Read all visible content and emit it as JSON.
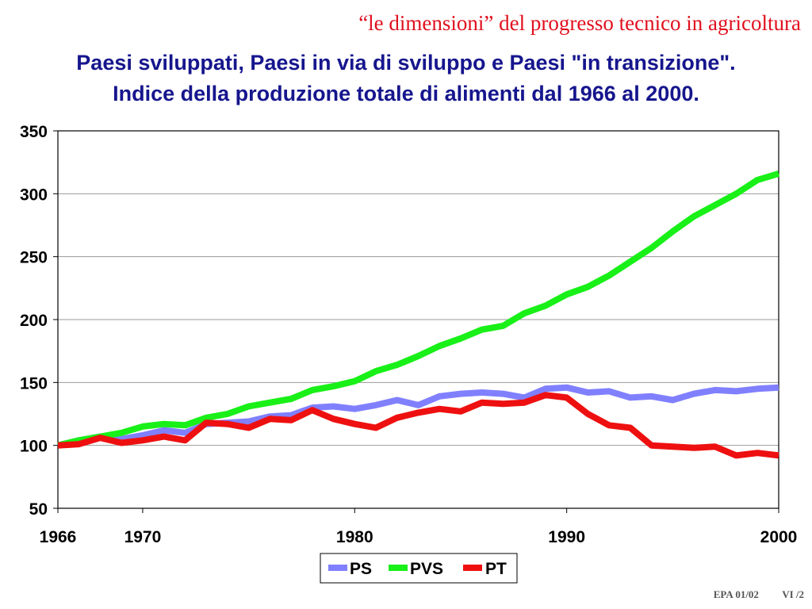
{
  "slide": {
    "header": "“le dimensioni” del progresso tecnico in agricoltura",
    "footer_left": "EPA 01/02",
    "footer_right": "VI /2"
  },
  "colors": {
    "header": "#e0101e",
    "title": "#16168e",
    "PS": "#8080ff",
    "PVS": "#18f018",
    "PT": "#ee1010"
  },
  "chart_data": {
    "type": "line",
    "title": "Paesi sviluppati, Paesi in via di sviluppo e Paesi \"in transizione\".",
    "subtitle": "Indice della produzione totale di alimenti dal 1966 al 2000.",
    "xlabel": "",
    "ylabel": "",
    "xlim": [
      1966,
      2000
    ],
    "ylim": [
      50,
      350
    ],
    "xticks": [
      1966,
      1970,
      1980,
      1990,
      2000
    ],
    "yticks": [
      50,
      100,
      150,
      200,
      250,
      300,
      350
    ],
    "grid": "horizontal",
    "legend_position": "bottom",
    "x": [
      1966,
      1967,
      1968,
      1969,
      1970,
      1971,
      1972,
      1973,
      1974,
      1975,
      1976,
      1977,
      1978,
      1979,
      1980,
      1981,
      1982,
      1983,
      1984,
      1985,
      1986,
      1987,
      1988,
      1989,
      1990,
      1991,
      1992,
      1993,
      1994,
      1995,
      1996,
      1997,
      1998,
      1999,
      2000
    ],
    "series": [
      {
        "name": "PS",
        "values": [
          100,
          104,
          107,
          105,
          108,
          112,
          110,
          117,
          118,
          119,
          123,
          124,
          130,
          131,
          129,
          132,
          136,
          132,
          139,
          141,
          142,
          141,
          138,
          145,
          146,
          142,
          143,
          138,
          139,
          136,
          141,
          144,
          143,
          145,
          146
        ]
      },
      {
        "name": "PVS",
        "values": [
          100,
          104,
          107,
          110,
          115,
          117,
          116,
          122,
          125,
          131,
          134,
          137,
          144,
          147,
          151,
          159,
          164,
          171,
          179,
          185,
          192,
          195,
          205,
          211,
          220,
          226,
          235,
          246,
          257,
          270,
          282,
          291,
          300,
          311,
          316
        ]
      },
      {
        "name": "PT",
        "values": [
          100,
          101,
          106,
          102,
          104,
          107,
          104,
          118,
          117,
          114,
          121,
          120,
          128,
          121,
          117,
          114,
          122,
          126,
          129,
          127,
          134,
          133,
          134,
          140,
          138,
          125,
          116,
          114,
          100,
          99,
          98,
          99,
          92,
          94,
          92
        ]
      }
    ]
  }
}
